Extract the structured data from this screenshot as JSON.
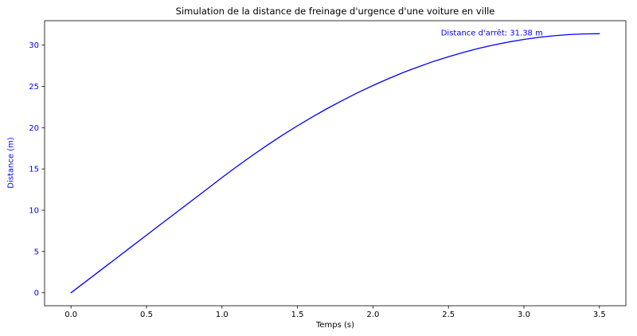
{
  "chart_data": {
    "type": "line",
    "title": "Simulation de la distance de freinage d'urgence d'une voiture en ville",
    "xlabel": "Temps (s)",
    "ylabel": "Distance (m)",
    "x": [
      0.0,
      0.1,
      0.2,
      0.3,
      0.4,
      0.5,
      0.6,
      0.7,
      0.8,
      0.9,
      1.0,
      1.1,
      1.2,
      1.3,
      1.4,
      1.5,
      1.6,
      1.7,
      1.8,
      1.9,
      2.0,
      2.1,
      2.2,
      2.3,
      2.4,
      2.5,
      2.6,
      2.7,
      2.8,
      2.9,
      3.0,
      3.1,
      3.2,
      3.3,
      3.4,
      3.5
    ],
    "y": [
      0.0,
      1.39,
      2.79,
      4.18,
      5.58,
      6.97,
      8.37,
      9.76,
      11.16,
      12.55,
      13.95,
      15.31,
      16.62,
      17.88,
      19.08,
      20.22,
      21.31,
      22.34,
      23.32,
      24.24,
      25.1,
      25.91,
      26.67,
      27.36,
      28.01,
      28.59,
      29.12,
      29.59,
      30.01,
      30.38,
      30.68,
      30.93,
      31.13,
      31.27,
      31.35,
      31.38
    ],
    "xticks": [
      0.0,
      0.5,
      1.0,
      1.5,
      2.0,
      2.5,
      3.0,
      3.5
    ],
    "xtick_labels": [
      "0.0",
      "0.5",
      "1.0",
      "1.5",
      "2.0",
      "2.5",
      "3.0",
      "3.5"
    ],
    "yticks": [
      0,
      5,
      10,
      15,
      20,
      25,
      30
    ],
    "ytick_labels": [
      "0",
      "5",
      "10",
      "15",
      "20",
      "25",
      "30"
    ],
    "xlim": [
      -0.175,
      3.675
    ],
    "ylim": [
      -1.57,
      32.95
    ],
    "annotation": {
      "text": "Distance d'arrêt: 31.38 m",
      "x": 2.45,
      "y": 31.15
    },
    "colors": {
      "line": "#0000ff",
      "axis": "#000000",
      "x_text": "#000000",
      "y_text": "#0000ff",
      "title": "#000000",
      "annotation": "#0000ff"
    }
  }
}
